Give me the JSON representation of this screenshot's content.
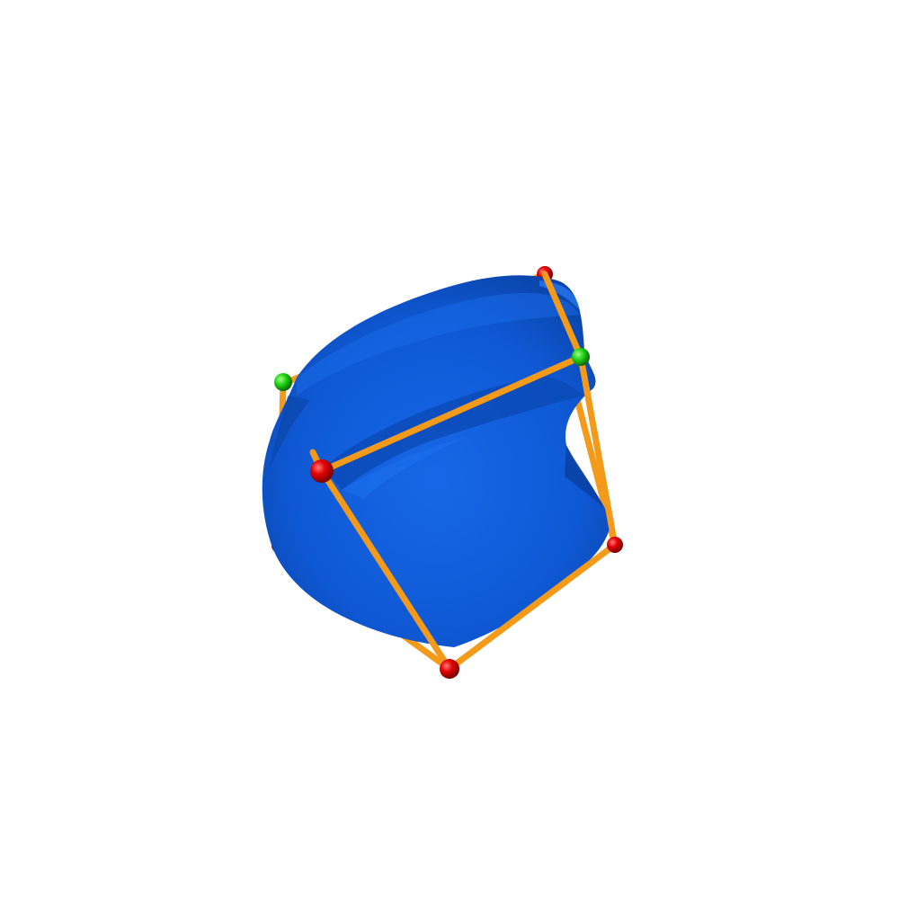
{
  "scene": {
    "background_color": "#ffffff",
    "mesh_color": "#1058d8",
    "mesh_highlight_color": "#1a66e6",
    "mesh_shadow_color": "#0a3f9e",
    "edge_color": "#f39a1a",
    "corner_color": "#e00000",
    "marker_color": "#1ecf10"
  }
}
